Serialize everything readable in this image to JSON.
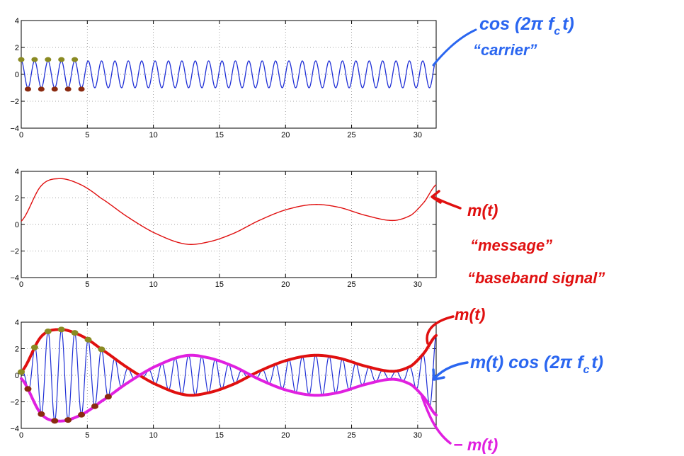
{
  "colors": {
    "carrier": "#1f2fd6",
    "message": "#e01010",
    "envelope_pos": "#e01010",
    "envelope_neg": "#e020e0",
    "annotation_blue": "#2a66f0",
    "annotation_red": "#e01010",
    "dot_olive": "#8a8a22",
    "dot_brown": "#8a2a10"
  },
  "chart_data": [
    {
      "type": "line",
      "title": "",
      "xlabel": "",
      "ylabel": "",
      "xlim": [
        0,
        31.4
      ],
      "ylim": [
        -4,
        4
      ],
      "xticks": [
        "0",
        "5",
        "10",
        "15",
        "20",
        "25",
        "30"
      ],
      "yticks": [
        "4",
        "2",
        "0",
        "−2",
        "−4"
      ],
      "grid": "dotted",
      "series": [
        {
          "signal": "carrier",
          "function": "cos",
          "amplitude": 1,
          "cycles": 31,
          "color": "carrier"
        }
      ],
      "annotations": [
        "cos (2π f",
        "c",
        "t)",
        "“carrier”"
      ]
    },
    {
      "type": "line",
      "title": "",
      "xlabel": "",
      "ylabel": "",
      "xlim": [
        0,
        31.4
      ],
      "ylim": [
        -4,
        4
      ],
      "xticks": [
        "0",
        "5",
        "10",
        "15",
        "20",
        "25",
        "30"
      ],
      "yticks": [
        "4",
        "2",
        "0",
        "−2",
        "−4"
      ],
      "grid": "dotted",
      "series": [
        {
          "signal": "message",
          "x": [
            0,
            1.5,
            2.9,
            4.5,
            6,
            8,
            10,
            12.3,
            14,
            16,
            18,
            20,
            22.1,
            24,
            26,
            28.1,
            29.5,
            30.5,
            31.4
          ],
          "y": [
            0.25,
            2.9,
            3.45,
            3.0,
            2.0,
            0.6,
            -0.6,
            -1.45,
            -1.35,
            -0.7,
            0.3,
            1.1,
            1.5,
            1.3,
            0.7,
            0.3,
            0.7,
            1.7,
            3.0
          ],
          "color": "message"
        }
      ],
      "annotations": [
        "m(t)",
        "“message”",
        "“baseband signal”"
      ]
    },
    {
      "type": "line",
      "title": "",
      "xlabel": "",
      "ylabel": "",
      "xlim": [
        0,
        31.4
      ],
      "ylim": [
        -4,
        4
      ],
      "xticks": [
        "0",
        "5",
        "10",
        "15",
        "20",
        "25",
        "30"
      ],
      "yticks": [
        "4",
        "2",
        "0",
        "−2",
        "−4"
      ],
      "grid": "dotted",
      "series": [
        {
          "signal": "modulated = m(t)·cos(2π·f_c·t)",
          "cycles": 31,
          "color": "carrier"
        },
        {
          "signal": "envelope m(t)",
          "color": "envelope_pos"
        },
        {
          "signal": "envelope −m(t)",
          "color": "envelope_neg"
        }
      ],
      "annotations": [
        "m(t)",
        "m(t) cos (2π f",
        "c",
        "t)",
        "− m(t)"
      ]
    }
  ]
}
